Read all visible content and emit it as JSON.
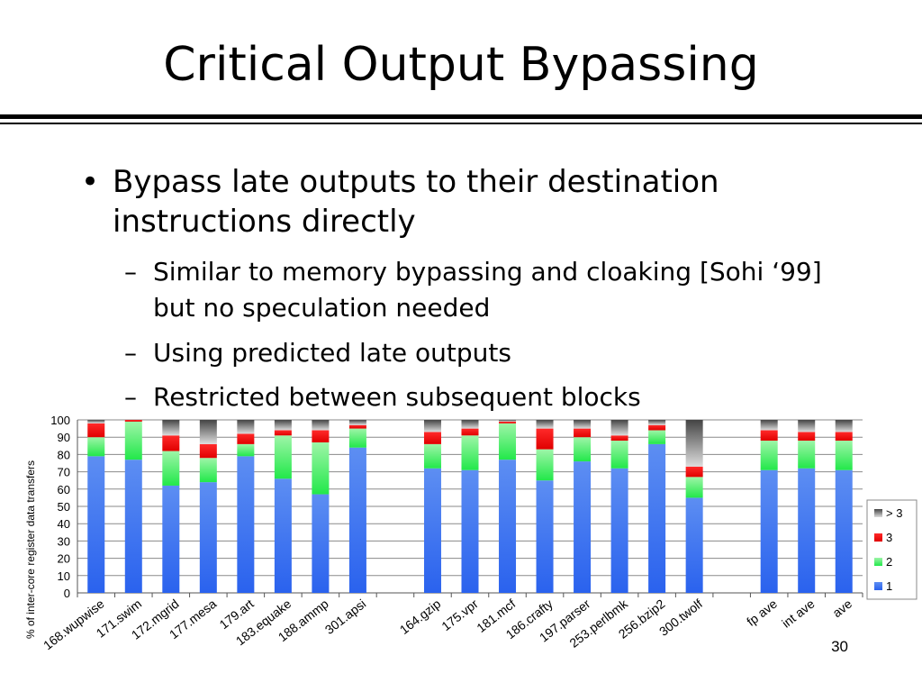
{
  "slide": {
    "title": "Critical Output Bypassing",
    "bullet_glyph": "•",
    "bullet": "Bypass late outputs to their destination instructions directly",
    "sub_dash": "–",
    "sub_bullets": [
      "Similar to memory bypassing and cloaking [Sohi ‘99] but no speculation needed",
      "Using predicted late outputs",
      "Restricted between subsequent blocks"
    ],
    "page_number": "30"
  },
  "chart_data": {
    "type": "bar",
    "stacked": true,
    "title": "",
    "xlabel": "",
    "ylabel": "% of inter-core register data transfers",
    "ylim": [
      0,
      100
    ],
    "yticks": [
      0,
      10,
      20,
      30,
      40,
      50,
      60,
      70,
      80,
      90,
      100
    ],
    "grid": true,
    "legend_position": "right",
    "categories": [
      "168.wupwise",
      "171.swim",
      "172.mgrid",
      "177.mesa",
      "179.art",
      "183.equake",
      "188.ammp",
      "301.apsi",
      "",
      "164.gzip",
      "175.vpr",
      "181.mcf",
      "186.crafty",
      "197.parser",
      "253.perlbmk",
      "256.bzip2",
      "300.twolf",
      "",
      "fp ave",
      "int ave",
      "ave"
    ],
    "series": [
      {
        "name": "1",
        "color": "#2f6ff0",
        "values": [
          79,
          77,
          62,
          64,
          79,
          66,
          57,
          84,
          null,
          72,
          71,
          77,
          65,
          76,
          72,
          86,
          55,
          null,
          71,
          72,
          71
        ]
      },
      {
        "name": "2",
        "color": "#33ee55",
        "values": [
          11,
          22,
          20,
          14,
          7,
          25,
          30,
          11,
          null,
          14,
          20,
          21,
          18,
          14,
          16,
          8,
          12,
          null,
          17,
          16,
          17
        ]
      },
      {
        "name": "3",
        "color": "#ee1111",
        "values": [
          8,
          1,
          9,
          8,
          6,
          3,
          7,
          2,
          null,
          7,
          4,
          1,
          12,
          5,
          3,
          3,
          6,
          null,
          6,
          5,
          5
        ]
      },
      {
        "name": "> 3",
        "color": "#444444",
        "values": [
          2,
          0,
          9,
          14,
          8,
          6,
          6,
          3,
          null,
          7,
          5,
          1,
          5,
          5,
          9,
          3,
          27,
          null,
          6,
          7,
          7
        ]
      }
    ]
  }
}
